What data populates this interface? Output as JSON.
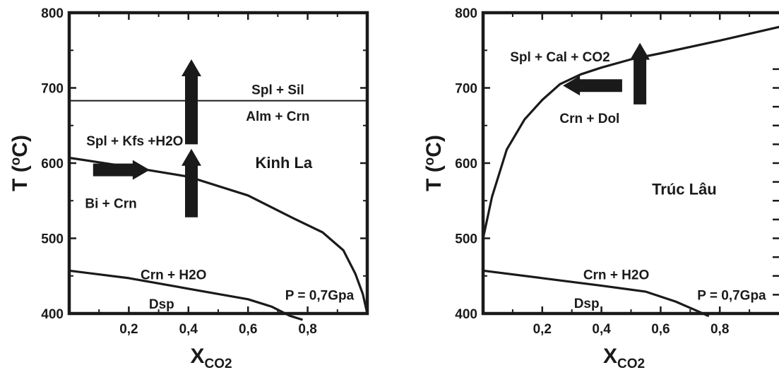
{
  "chart_data": [
    {
      "type": "line",
      "site": "Kinh La",
      "pressure_label": "P = 0,7Gpa",
      "xlabel_main": "X",
      "xlabel_sub": "CO2",
      "ylabel_main": "T (",
      "ylabel_sup": "o",
      "ylabel_tail": "C)",
      "xlim": [
        0,
        1
      ],
      "ylim": [
        400,
        800
      ],
      "x_ticks": [
        0.2,
        0.4,
        0.6,
        0.8
      ],
      "x_tick_labels": [
        "0,2",
        "0,4",
        "0,6",
        "0,8"
      ],
      "y_ticks": [
        400,
        500,
        600,
        700,
        800
      ],
      "y_tick_labels": [
        "400",
        "500",
        "600",
        "700",
        "800"
      ],
      "series": [
        {
          "x": [
            0,
            1
          ],
          "y": [
            683,
            683
          ]
        },
        {
          "x": [
            0,
            0.2,
            0.4,
            0.6,
            0.75,
            0.85,
            0.92,
            0.96,
            0.985,
            1.0
          ],
          "y": [
            607,
            595,
            582,
            557,
            527,
            508,
            484,
            453,
            426,
            400
          ]
        },
        {
          "x": [
            0,
            0.2,
            0.4,
            0.6,
            0.68,
            0.74,
            0.78
          ],
          "y": [
            457,
            447,
            433,
            419,
            409,
            397,
            392
          ]
        }
      ],
      "annotations": [
        {
          "text": "Spl + Sil",
          "x": 0.7,
          "y": 698
        },
        {
          "text": "Alm + Crn",
          "x": 0.7,
          "y": 663
        },
        {
          "text": "Spl + Kfs +H2O",
          "x": 0.22,
          "y": 630
        },
        {
          "text": "Kinh La",
          "x": 0.72,
          "y": 600
        },
        {
          "text": "Bi + Crn",
          "x": 0.14,
          "y": 547
        },
        {
          "text": "Crn + H2O",
          "x": 0.35,
          "y": 452
        },
        {
          "text": "Dsp",
          "x": 0.31,
          "y": 413
        },
        {
          "text": "P = 0,7Gpa",
          "x": 0.84,
          "y": 425
        }
      ],
      "arrows": [
        {
          "direction": "up",
          "x": 0.41,
          "y_from": 625,
          "y_to": 738
        },
        {
          "direction": "up",
          "x": 0.41,
          "y_from": 528,
          "y_to": 619
        },
        {
          "direction": "right",
          "y": 591,
          "x_from": 0.08,
          "x_to": 0.27
        }
      ]
    },
    {
      "type": "line",
      "site": "Trúc Lâu",
      "pressure_label": "P = 0,7Gpa",
      "xlabel_main": "X",
      "xlabel_sub": "CO2",
      "ylabel_main": "T (",
      "ylabel_sup": "o",
      "ylabel_tail": "C)",
      "xlim": [
        0,
        1
      ],
      "ylim": [
        400,
        800
      ],
      "x_ticks": [
        0.2,
        0.4,
        0.6,
        0.8
      ],
      "x_tick_labels": [
        "0,2",
        "0,4",
        "0,6",
        "0,8"
      ],
      "y_ticks": [
        400,
        500,
        600,
        700,
        800
      ],
      "y_tick_labels": [
        "400",
        "500",
        "600",
        "700",
        "800"
      ],
      "series": [
        {
          "x": [
            0,
            0.03,
            0.08,
            0.14,
            0.2,
            0.26,
            0.33,
            0.4,
            0.5,
            0.6,
            0.8,
            1.0
          ],
          "y": [
            500,
            555,
            618,
            658,
            684,
            705,
            718,
            727,
            738,
            746,
            763,
            781
          ]
        },
        {
          "x": [
            0,
            0.2,
            0.4,
            0.55,
            0.65,
            0.72,
            0.76
          ],
          "y": [
            457,
            447,
            437,
            429,
            416,
            404,
            397
          ]
        }
      ],
      "annotations": [
        {
          "text": "Spl + Cal + CO2",
          "x": 0.26,
          "y": 742
        },
        {
          "text": "Crn + Dol",
          "x": 0.36,
          "y": 660
        },
        {
          "text": "Trúc Lâu",
          "x": 0.68,
          "y": 565
        },
        {
          "text": "Crn + H2O",
          "x": 0.45,
          "y": 452
        },
        {
          "text": "Dsp",
          "x": 0.35,
          "y": 414
        },
        {
          "text": "P = 0,7Gpa",
          "x": 0.84,
          "y": 425
        }
      ],
      "arrows": [
        {
          "direction": "left",
          "y": 703,
          "x_from": 0.47,
          "x_to": 0.27
        },
        {
          "direction": "up",
          "x": 0.53,
          "y_from": 678,
          "y_to": 760
        }
      ]
    }
  ]
}
